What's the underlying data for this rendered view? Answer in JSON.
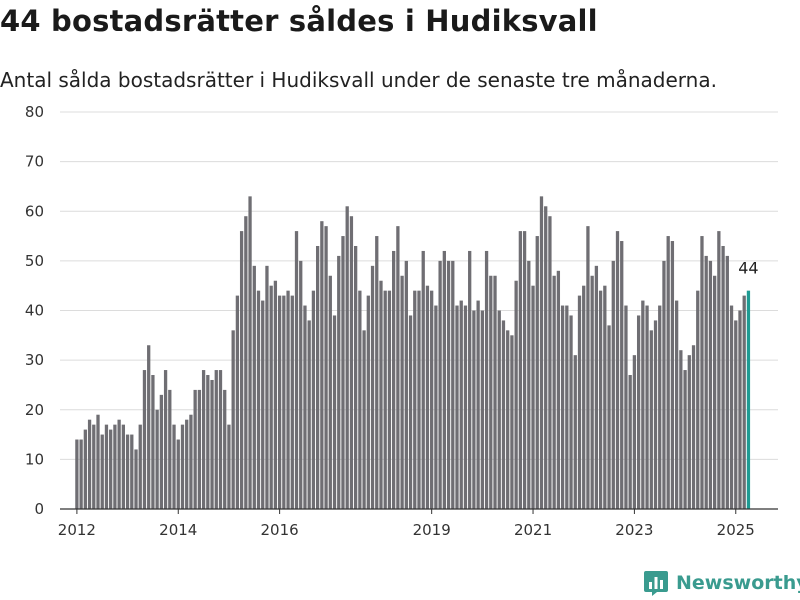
{
  "title": "44 bostadsrätter såldes i Hudiksvall",
  "subtitle": "Antal sålda bostadsrätter i Hudiksvall under de senaste tre månaderna.",
  "logo": {
    "name": "Newsworthy",
    "icon": "newsworthy-chart-icon"
  },
  "colors": {
    "bar": "#6f6e73",
    "highlight": "#1e9b93",
    "grid": "#dcdcdc",
    "axis": "#333333"
  },
  "chart_data": {
    "type": "bar",
    "title": "44 bostadsrätter såldes i Hudiksvall",
    "subtitle": "Antal sålda bostadsrätter i Hudiksvall under de senaste tre månaderna.",
    "xlabel": "",
    "ylabel": "",
    "ylim": [
      0,
      80
    ],
    "yticks": [
      "0",
      "10",
      "20",
      "30",
      "40",
      "50",
      "60",
      "70",
      "80"
    ],
    "xlim": [
      "2011-09",
      "2025-11"
    ],
    "xticks": [
      {
        "label": "2012",
        "date": "2012-01"
      },
      {
        "label": "2014",
        "date": "2014-01"
      },
      {
        "label": "2016",
        "date": "2016-01"
      },
      {
        "label": "2019",
        "date": "2019-01"
      },
      {
        "label": "2021",
        "date": "2021-01"
      },
      {
        "label": "2023",
        "date": "2023-01"
      },
      {
        "label": "2025",
        "date": "2025-01"
      }
    ],
    "grid": true,
    "x_start": "2012-01",
    "x_interval": "month",
    "highlight_last": true,
    "annotation": {
      "label": "44"
    },
    "values": [
      14,
      14,
      16,
      18,
      17,
      19,
      15,
      17,
      16,
      17,
      18,
      17,
      15,
      15,
      12,
      17,
      28,
      33,
      27,
      20,
      23,
      28,
      24,
      17,
      14,
      17,
      18,
      19,
      24,
      24,
      28,
      27,
      26,
      28,
      28,
      24,
      17,
      36,
      43,
      56,
      59,
      63,
      49,
      44,
      42,
      49,
      45,
      46,
      43,
      43,
      44,
      43,
      56,
      50,
      41,
      38,
      44,
      53,
      58,
      57,
      47,
      39,
      51,
      55,
      61,
      59,
      53,
      44,
      36,
      43,
      49,
      55,
      46,
      44,
      44,
      52,
      57,
      47,
      50,
      39,
      44,
      44,
      52,
      45,
      44,
      41,
      50,
      52,
      50,
      50,
      41,
      42,
      41,
      52,
      40,
      42,
      40,
      52,
      47,
      47,
      40,
      38,
      36,
      35,
      46,
      56,
      56,
      50,
      45,
      55,
      63,
      61,
      59,
      47,
      48,
      41,
      41,
      39,
      31,
      43,
      45,
      57,
      47,
      49,
      44,
      45,
      37,
      50,
      56,
      54,
      41,
      27,
      31,
      39,
      42,
      41,
      36,
      38,
      41,
      50,
      55,
      54,
      42,
      32,
      28,
      31,
      33,
      44,
      55,
      51,
      50,
      47,
      56,
      53,
      51,
      41,
      38,
      40,
      43,
      44
    ]
  }
}
